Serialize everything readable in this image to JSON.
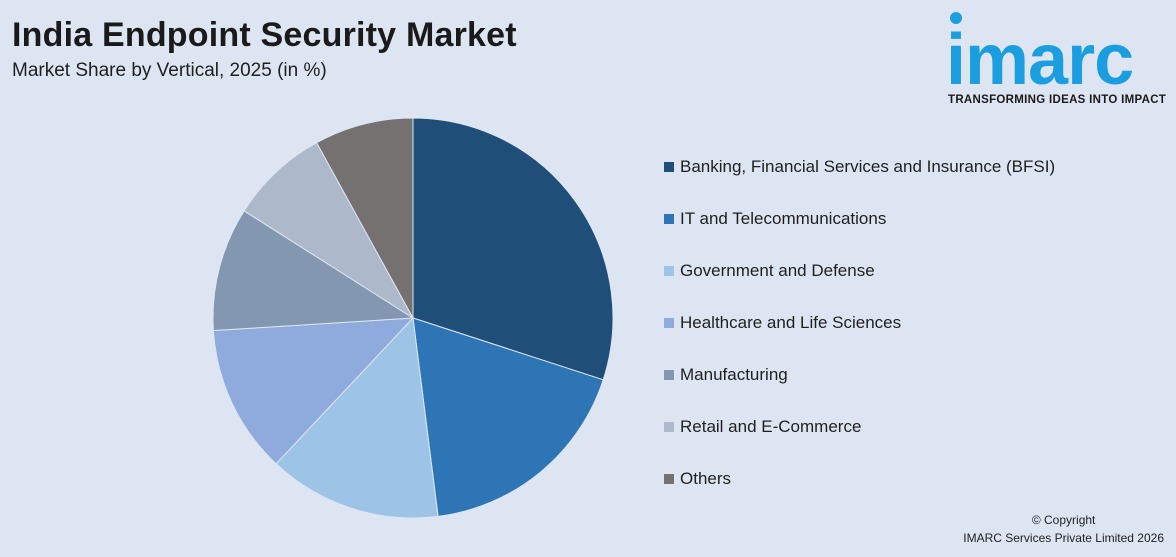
{
  "header": {
    "title": "India Endpoint Security Market",
    "subtitle": "Market Share by Vertical, 2025 (in %)"
  },
  "logo": {
    "word": "imarc",
    "tagline": "TRANSFORMING IDEAS INTO IMPACT",
    "color": "#1a9ee0"
  },
  "chart_data": {
    "type": "pie",
    "title": "India Endpoint Security Market",
    "subtitle": "Market Share by Vertical, 2025 (in %)",
    "legend_position": "right",
    "start_angle": "12 o'clock, clockwise",
    "slices": [
      {
        "label": "Banking, Financial Services and Insurance (BFSI)",
        "value": 30,
        "color": "#1f4e79"
      },
      {
        "label": "IT and Telecommunications",
        "value": 18,
        "color": "#2e75b6"
      },
      {
        "label": "Government and Defense",
        "value": 14,
        "color": "#9dc3e6"
      },
      {
        "label": "Healthcare and Life Sciences",
        "value": 12,
        "color": "#8faadc"
      },
      {
        "label": "Manufacturing",
        "value": 10,
        "color": "#8497b0"
      },
      {
        "label": "Retail and E-Commerce",
        "value": 8,
        "color": "#adb9ca"
      },
      {
        "label": "Others",
        "value": 8,
        "color": "#767171"
      }
    ]
  },
  "footer": {
    "copyright_line1": "© Copyright",
    "copyright_line2": "IMARC Services Private Limited 2026"
  }
}
